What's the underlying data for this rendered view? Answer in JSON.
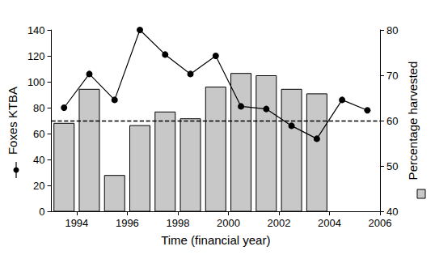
{
  "chart_data": {
    "type": "combo",
    "xlabel": "Time (financial year)",
    "ylabel": "Foxes KTBA",
    "y2label": "Percentage harvested",
    "xlim": [
      1993,
      2006
    ],
    "xticks": [
      1994,
      1996,
      1998,
      2000,
      2002,
      2004,
      2006
    ],
    "ylim": [
      0,
      140
    ],
    "yticks": [
      0,
      20,
      40,
      60,
      80,
      100,
      120,
      140
    ],
    "y2lim": [
      40,
      80
    ],
    "y2ticks": [
      40,
      50,
      60,
      70,
      80
    ],
    "grid": false,
    "series": [
      {
        "name": "Percentage harvested",
        "type": "bar",
        "axis": "y2",
        "color": "#c8c8c8",
        "x": [
          1993.5,
          1994.5,
          1995.5,
          1996.5,
          1997.5,
          1998.5,
          1999.5,
          2000.5,
          2001.5,
          2002.5,
          2003.5
        ],
        "values": [
          59.5,
          67,
          48,
          59,
          62,
          60.5,
          67.5,
          70.5,
          70,
          67,
          66
        ]
      },
      {
        "name": "Foxes KTBA",
        "type": "line",
        "color": "#000000",
        "marker": "circle",
        "line_style": "solid",
        "x": [
          1993.5,
          1994.5,
          1995.5,
          1996.5,
          1997.5,
          1998.5,
          1999.5,
          2000.5,
          2001.5,
          2002.5,
          2003.5,
          2004.5,
          2005.5
        ],
        "values": [
          80,
          106,
          86,
          140,
          121,
          106,
          120,
          81,
          79,
          66,
          56,
          86,
          78
        ]
      }
    ],
    "reference_lines": [
      {
        "y": 60,
        "axis": "y2",
        "color": "#000000",
        "line_style": "dashed"
      }
    ]
  }
}
